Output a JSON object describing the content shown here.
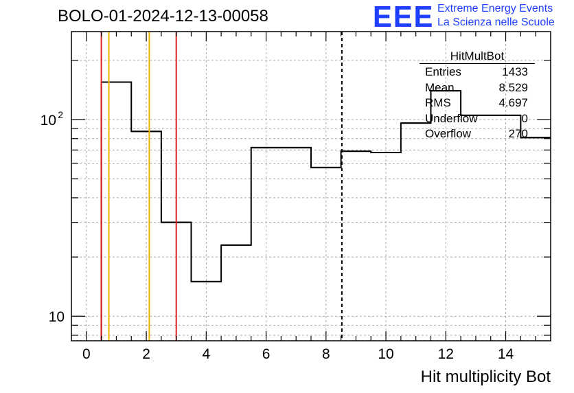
{
  "header": {
    "run_title": "BOLO-01-2024-12-13-00058",
    "logo_text": "EEE",
    "logo_line1": "Extreme Energy Events",
    "logo_line2": "La Scienza nelle Scuole",
    "accent_color": "#1f3fff"
  },
  "stats": {
    "title": "HitMultBot",
    "rows": [
      {
        "key": "Entries",
        "value": "1433"
      },
      {
        "key": "Mean",
        "value": "8.529"
      },
      {
        "key": "RMS",
        "value": "4.697"
      },
      {
        "key": "Underflow",
        "value": "0"
      },
      {
        "key": "Overflow",
        "value": "270"
      }
    ]
  },
  "chart_data": {
    "type": "bar",
    "style": "step histogram",
    "xlabel": "Hit multiplicity Bot",
    "ylabel": "",
    "xlim": [
      -0.5,
      15.5
    ],
    "ylim": [
      7.5,
      280
    ],
    "yscale": "log",
    "grid": true,
    "bin_edges": [
      0.5,
      1.5,
      2.5,
      3.5,
      4.5,
      5.5,
      6.5,
      7.5,
      8.5,
      9.5,
      10.5,
      11.5,
      12.5,
      13.5,
      14.5,
      15.5
    ],
    "values": [
      155,
      87,
      30,
      15,
      23,
      72,
      72,
      57,
      69,
      68,
      96,
      140,
      105,
      105,
      81
    ],
    "x_ticks": [
      0,
      2,
      4,
      6,
      8,
      10,
      12,
      14
    ],
    "y_tick_labels": [
      {
        "value": 10,
        "base": "10",
        "exp": ""
      },
      {
        "value": 100,
        "base": "10",
        "exp": "2"
      }
    ],
    "markers": [
      {
        "x": 0.5,
        "color": "#e02020"
      },
      {
        "x": 0.75,
        "color": "#f0b400"
      },
      {
        "x": 2.1,
        "color": "#f0b400"
      },
      {
        "x": 3.0,
        "color": "#e02020"
      }
    ],
    "mean_line": {
      "x": 8.529,
      "color": "#000000",
      "dashed": true
    }
  }
}
